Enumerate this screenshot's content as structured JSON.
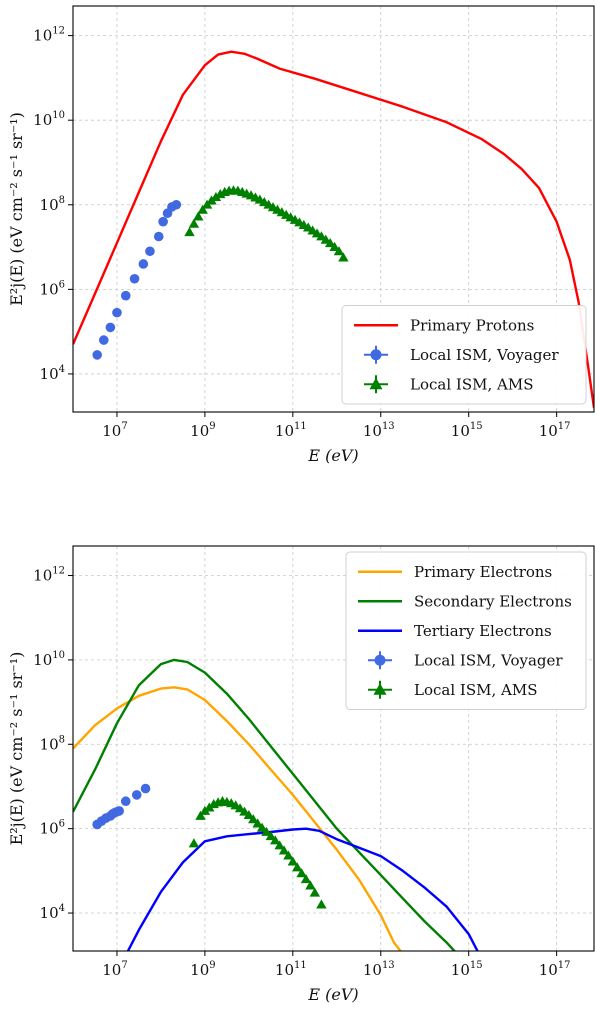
{
  "figures": [
    {
      "title": "",
      "xlabel": "E (eV)",
      "ylabel": "E²j(E) (eV cm⁻² s⁻¹ sr⁻¹)",
      "xticks": [
        {
          "exp": 7,
          "base": "10",
          "sup": "7"
        },
        {
          "exp": 9,
          "base": "10",
          "sup": "9"
        },
        {
          "exp": 11,
          "base": "10",
          "sup": "11"
        },
        {
          "exp": 13,
          "base": "10",
          "sup": "13"
        },
        {
          "exp": 15,
          "base": "10",
          "sup": "15"
        },
        {
          "exp": 17,
          "base": "10",
          "sup": "17"
        }
      ],
      "yticks": [
        {
          "exp": 4,
          "base": "10",
          "sup": "4"
        },
        {
          "exp": 6,
          "base": "10",
          "sup": "6"
        },
        {
          "exp": 8,
          "base": "10",
          "sup": "8"
        },
        {
          "exp": 10,
          "base": "10",
          "sup": "10"
        },
        {
          "exp": 12,
          "base": "10",
          "sup": "12"
        }
      ],
      "legend": [
        {
          "label": "Primary Protons",
          "color": "#ff0000",
          "marker": "line"
        },
        {
          "label": "Local ISM, Voyager",
          "color": "#4169e1",
          "marker": "circle"
        },
        {
          "label": "Local ISM, AMS",
          "color": "#008000",
          "marker": "triangle"
        }
      ]
    },
    {
      "title": "",
      "xlabel": "E (eV)",
      "ylabel": "E²j(E) (eV cm⁻² s⁻¹ sr⁻¹)",
      "xticks": [
        {
          "exp": 7,
          "base": "10",
          "sup": "7"
        },
        {
          "exp": 9,
          "base": "10",
          "sup": "9"
        },
        {
          "exp": 11,
          "base": "10",
          "sup": "11"
        },
        {
          "exp": 13,
          "base": "10",
          "sup": "13"
        },
        {
          "exp": 15,
          "base": "10",
          "sup": "15"
        },
        {
          "exp": 17,
          "base": "10",
          "sup": "17"
        }
      ],
      "yticks": [
        {
          "exp": 4,
          "base": "10",
          "sup": "4"
        },
        {
          "exp": 6,
          "base": "10",
          "sup": "6"
        },
        {
          "exp": 8,
          "base": "10",
          "sup": "8"
        },
        {
          "exp": 10,
          "base": "10",
          "sup": "10"
        },
        {
          "exp": 12,
          "base": "10",
          "sup": "12"
        }
      ],
      "legend": [
        {
          "label": "Primary Electrons",
          "color": "#ffa500",
          "marker": "line"
        },
        {
          "label": "Secondary Electrons",
          "color": "#008000",
          "marker": "line"
        },
        {
          "label": "Tertiary Electrons",
          "color": "#0000ff",
          "marker": "line"
        },
        {
          "label": "Local ISM, Voyager",
          "color": "#4169e1",
          "marker": "circle"
        },
        {
          "label": "Local ISM, AMS",
          "color": "#008000",
          "marker": "triangle"
        }
      ]
    }
  ],
  "chart_data": [
    {
      "type": "line",
      "xlabel": "E (eV)",
      "ylabel": "E²j(E) (eV cm⁻² s⁻¹ sr⁻¹)",
      "xscale": "log",
      "yscale": "log",
      "xlim_log10": [
        6.0,
        17.85
      ],
      "ylim_log10": [
        3.1,
        12.7
      ],
      "grid": true,
      "legend_position": "lower-right",
      "series": [
        {
          "name": "Primary Protons",
          "kind": "line",
          "color": "#ff0000",
          "x_log10": [
            6.0,
            6.5,
            7.0,
            7.5,
            8.0,
            8.5,
            9.0,
            9.3,
            9.6,
            9.9,
            10.2,
            10.7,
            11.5,
            12.5,
            13.5,
            14.5,
            15.3,
            15.8,
            16.2,
            16.6,
            17.0,
            17.3,
            17.5,
            17.7,
            17.85
          ],
          "y_log10": [
            4.7,
            5.9,
            7.1,
            8.3,
            9.5,
            10.6,
            11.3,
            11.55,
            11.62,
            11.57,
            11.45,
            11.22,
            10.98,
            10.65,
            10.32,
            9.95,
            9.55,
            9.2,
            8.85,
            8.4,
            7.6,
            6.7,
            5.7,
            4.3,
            3.2
          ]
        },
        {
          "name": "Local ISM, Voyager",
          "kind": "scatter",
          "marker": "circle",
          "color": "#4169e1",
          "x_log10": [
            6.55,
            6.7,
            6.85,
            7.0,
            7.2,
            7.4,
            7.6,
            7.75,
            7.95,
            8.05,
            8.15,
            8.25,
            8.35
          ],
          "y_log10": [
            4.45,
            4.8,
            5.1,
            5.45,
            5.85,
            6.25,
            6.6,
            6.9,
            7.25,
            7.6,
            7.8,
            7.95,
            8.0
          ]
        },
        {
          "name": "Local ISM, AMS",
          "kind": "scatter",
          "marker": "triangle",
          "color": "#008000",
          "x_log10": [
            8.65,
            8.75,
            8.85,
            8.95,
            9.05,
            9.15,
            9.25,
            9.35,
            9.45,
            9.55,
            9.65,
            9.75,
            9.85,
            9.95,
            10.05,
            10.15,
            10.25,
            10.35,
            10.45,
            10.55,
            10.65,
            10.75,
            10.85,
            10.95,
            11.05,
            11.15,
            11.25,
            11.35,
            11.45,
            11.55,
            11.65,
            11.75,
            11.85,
            11.95,
            12.05,
            12.15
          ],
          "y_log10": [
            7.35,
            7.55,
            7.72,
            7.88,
            8.0,
            8.1,
            8.18,
            8.25,
            8.3,
            8.33,
            8.34,
            8.33,
            8.3,
            8.26,
            8.22,
            8.17,
            8.12,
            8.06,
            8.0,
            7.94,
            7.88,
            7.82,
            7.76,
            7.7,
            7.64,
            7.58,
            7.52,
            7.46,
            7.39,
            7.32,
            7.25,
            7.17,
            7.09,
            7.0,
            6.9,
            6.75
          ]
        }
      ]
    },
    {
      "type": "line",
      "xlabel": "E (eV)",
      "ylabel": "E²j(E) (eV cm⁻² s⁻¹ sr⁻¹)",
      "xscale": "log",
      "yscale": "log",
      "xlim_log10": [
        6.0,
        17.85
      ],
      "ylim_log10": [
        3.1,
        12.7
      ],
      "grid": true,
      "legend_position": "top-right",
      "series": [
        {
          "name": "Primary Electrons",
          "kind": "line",
          "color": "#ffa500",
          "x_log10": [
            6.0,
            6.5,
            7.0,
            7.5,
            8.0,
            8.3,
            8.6,
            9.0,
            9.5,
            10.0,
            10.5,
            11.0,
            11.5,
            12.0,
            12.5,
            13.0,
            13.3,
            13.6
          ],
          "y_log10": [
            7.9,
            8.45,
            8.85,
            9.15,
            9.32,
            9.35,
            9.3,
            9.05,
            8.55,
            8.0,
            7.4,
            6.8,
            6.15,
            5.5,
            4.8,
            3.95,
            3.3,
            2.9
          ]
        },
        {
          "name": "Secondary Electrons",
          "kind": "line",
          "color": "#008000",
          "x_log10": [
            6.0,
            6.5,
            7.0,
            7.5,
            8.0,
            8.3,
            8.6,
            9.0,
            9.5,
            10.0,
            10.5,
            11.0,
            11.5,
            12.0,
            12.5,
            13.0,
            13.5,
            14.0,
            14.5,
            14.85
          ],
          "y_log10": [
            6.4,
            7.4,
            8.5,
            9.4,
            9.9,
            10.0,
            9.95,
            9.7,
            9.2,
            8.6,
            7.95,
            7.3,
            6.65,
            6.0,
            5.45,
            4.9,
            4.35,
            3.8,
            3.3,
            2.9
          ]
        },
        {
          "name": "Tertiary Electrons",
          "kind": "line",
          "color": "#0000ff",
          "x_log10": [
            7.2,
            7.5,
            8.0,
            8.5,
            9.0,
            9.5,
            10.0,
            10.5,
            11.0,
            11.3,
            11.6,
            12.0,
            12.5,
            13.0,
            13.5,
            14.0,
            14.5,
            15.0,
            15.3
          ],
          "y_log10": [
            3.0,
            3.6,
            4.5,
            5.2,
            5.7,
            5.82,
            5.87,
            5.92,
            5.98,
            6.0,
            5.95,
            5.75,
            5.55,
            5.35,
            5.0,
            4.6,
            4.15,
            3.5,
            2.9
          ]
        },
        {
          "name": "Local ISM, Voyager",
          "kind": "scatter",
          "marker": "circle",
          "color": "#4169e1",
          "x_log10": [
            6.55,
            6.65,
            6.75,
            6.85,
            6.9,
            6.95,
            7.0,
            7.05,
            7.2,
            7.45,
            7.65
          ],
          "y_log10": [
            6.1,
            6.18,
            6.25,
            6.3,
            6.35,
            6.38,
            6.4,
            6.42,
            6.65,
            6.8,
            6.95
          ]
        },
        {
          "name": "Local ISM, AMS",
          "kind": "scatter",
          "marker": "triangle",
          "color": "#008000",
          "x_log10": [
            8.75,
            8.9,
            9.0,
            9.1,
            9.2,
            9.3,
            9.4,
            9.5,
            9.6,
            9.7,
            9.8,
            9.9,
            10.0,
            10.1,
            10.2,
            10.3,
            10.4,
            10.5,
            10.6,
            10.7,
            10.8,
            10.9,
            11.0,
            11.1,
            11.2,
            11.3,
            11.4,
            11.5,
            11.65
          ],
          "y_log10": [
            5.65,
            6.3,
            6.42,
            6.5,
            6.58,
            6.62,
            6.65,
            6.63,
            6.6,
            6.55,
            6.48,
            6.4,
            6.32,
            6.22,
            6.12,
            6.02,
            5.92,
            5.82,
            5.72,
            5.6,
            5.48,
            5.36,
            5.22,
            5.08,
            4.94,
            4.8,
            4.65,
            4.48,
            4.2
          ]
        }
      ]
    }
  ]
}
